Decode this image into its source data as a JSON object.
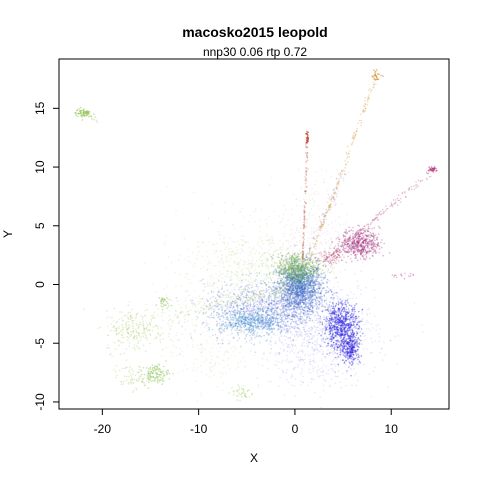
{
  "chart_data": {
    "type": "scatter",
    "title": "macosko2015 leopold",
    "subtitle": "nnp30 0.06 rtp 0.72",
    "xlabel": "X",
    "ylabel": "Y",
    "xlim": [
      -24.5,
      16
    ],
    "ylim": [
      -10.6,
      19.2
    ],
    "xticks": [
      -20,
      -10,
      0,
      10
    ],
    "xtick_labels": [
      "-20",
      "-10",
      "0",
      "10"
    ],
    "yticks": [
      -10,
      -5,
      0,
      5,
      10,
      15
    ],
    "ytick_labels": [
      "-10",
      "-5",
      "0",
      "5",
      "10",
      "15"
    ],
    "grid": false,
    "legend": "none",
    "clusters": [
      {
        "cx": 0.5,
        "cy": -0.3,
        "sx": 1.2,
        "sy": 1.1,
        "n": 1400,
        "color": "#3a68c8",
        "alpha": 0.35
      },
      {
        "cx": 0.2,
        "cy": 1.2,
        "sx": 1.0,
        "sy": 0.7,
        "n": 450,
        "color": "#56a06a",
        "alpha": 0.35
      },
      {
        "cx": 0.0,
        "cy": 1.6,
        "sx": 1.4,
        "sy": 0.6,
        "n": 300,
        "color": "#9cbf3a",
        "alpha": 0.3
      },
      {
        "cx": -3.5,
        "cy": -2.2,
        "sx": 3.0,
        "sy": 1.2,
        "n": 1100,
        "color": "#3a52d8",
        "alpha": 0.22
      },
      {
        "cx": -4.5,
        "cy": -3.2,
        "sx": 1.6,
        "sy": 0.5,
        "n": 420,
        "color": "#3f8fd0",
        "alpha": 0.35
      },
      {
        "cx": 4.8,
        "cy": -3.5,
        "sx": 0.9,
        "sy": 1.0,
        "n": 650,
        "color": "#2a22e0",
        "alpha": 0.4
      },
      {
        "cx": 5.8,
        "cy": -5.4,
        "sx": 0.5,
        "sy": 0.7,
        "n": 280,
        "color": "#3322dd",
        "alpha": 0.4
      },
      {
        "cx": 2.5,
        "cy": -4.2,
        "sx": 3.0,
        "sy": 2.2,
        "n": 900,
        "color": "#4a4ae0",
        "alpha": 0.13
      },
      {
        "cx": -5.0,
        "cy": 1.0,
        "sx": 3.5,
        "sy": 2.3,
        "n": 650,
        "color": "#a8c466",
        "alpha": 0.18
      },
      {
        "cx": 6.8,
        "cy": 3.5,
        "sx": 1.0,
        "sy": 0.6,
        "n": 500,
        "color": "#a02878",
        "alpha": 0.35
      },
      {
        "cx": 3.8,
        "cy": 2.3,
        "sx": 0.7,
        "sy": 0.4,
        "n": 90,
        "color": "#b03060",
        "alpha": 0.3
      },
      {
        "cx": 2.0,
        "cy": 4.5,
        "sx": 1.8,
        "sy": 2.5,
        "n": 250,
        "color": "#c070a0",
        "alpha": 0.12
      },
      {
        "cx": -16.5,
        "cy": -4.0,
        "sx": 1.6,
        "sy": 0.9,
        "n": 180,
        "color": "#a8cc66",
        "alpha": 0.35
      },
      {
        "cx": -14.5,
        "cy": -7.6,
        "sx": 0.7,
        "sy": 0.4,
        "n": 120,
        "color": "#88c050",
        "alpha": 0.45
      },
      {
        "cx": -17.0,
        "cy": -7.9,
        "sx": 1.0,
        "sy": 0.5,
        "n": 70,
        "color": "#b0cc70",
        "alpha": 0.35
      },
      {
        "cx": -22.0,
        "cy": 14.6,
        "sx": 0.4,
        "sy": 0.2,
        "n": 60,
        "color": "#88c048",
        "alpha": 0.55
      },
      {
        "cx": -13.8,
        "cy": -1.5,
        "sx": 0.3,
        "sy": 0.3,
        "n": 30,
        "color": "#90c058",
        "alpha": 0.5
      },
      {
        "cx": -5.5,
        "cy": -9.2,
        "sx": 0.6,
        "sy": 0.3,
        "n": 40,
        "color": "#a8cc66",
        "alpha": 0.4
      },
      {
        "cx": -9.0,
        "cy": -5.0,
        "sx": 2.2,
        "sy": 2.2,
        "n": 200,
        "color": "#b0cc70",
        "alpha": 0.2
      },
      {
        "cx": 8.5,
        "cy": 17.8,
        "sx": 0.25,
        "sy": 0.25,
        "n": 25,
        "color": "#d28a20",
        "alpha": 0.6
      },
      {
        "cx": 1.3,
        "cy": 12.5,
        "sx": 0.08,
        "sy": 0.25,
        "n": 25,
        "color": "#c03020",
        "alpha": 0.6
      },
      {
        "cx": 14.3,
        "cy": 9.8,
        "sx": 0.25,
        "sy": 0.15,
        "n": 25,
        "color": "#b02070",
        "alpha": 0.6
      },
      {
        "cx": 11.0,
        "cy": 0.8,
        "sx": 0.6,
        "sy": 0.1,
        "n": 15,
        "color": "#c040a0",
        "alpha": 0.4
      }
    ],
    "streaks": [
      {
        "x0": 1.5,
        "y0": 2.0,
        "x1": 8.5,
        "y1": 17.8,
        "n": 160,
        "jitter": 0.25,
        "color": "#d09a40",
        "alpha": 0.35
      },
      {
        "x0": 0.8,
        "y0": 2.0,
        "x1": 1.3,
        "y1": 12.3,
        "n": 110,
        "jitter": 0.15,
        "color": "#c06050",
        "alpha": 0.35
      },
      {
        "x0": 3.0,
        "y0": 2.0,
        "x1": 14.3,
        "y1": 9.7,
        "n": 160,
        "jitter": 0.3,
        "color": "#b04880",
        "alpha": 0.3
      },
      {
        "x0": 1.0,
        "y0": 2.0,
        "x1": 5.0,
        "y1": 9.5,
        "n": 90,
        "jitter": 0.4,
        "color": "#b080b0",
        "alpha": 0.25
      },
      {
        "x0": -1.0,
        "y0": -0.5,
        "x1": -20.0,
        "y1": -3.8,
        "n": 260,
        "jitter": 1.2,
        "color": "#b0cc70",
        "alpha": 0.28
      },
      {
        "x0": -21.8,
        "y0": 14.6,
        "x1": -20.5,
        "y1": 14.0,
        "n": 20,
        "jitter": 0.2,
        "color": "#a0c860",
        "alpha": 0.4
      }
    ]
  }
}
